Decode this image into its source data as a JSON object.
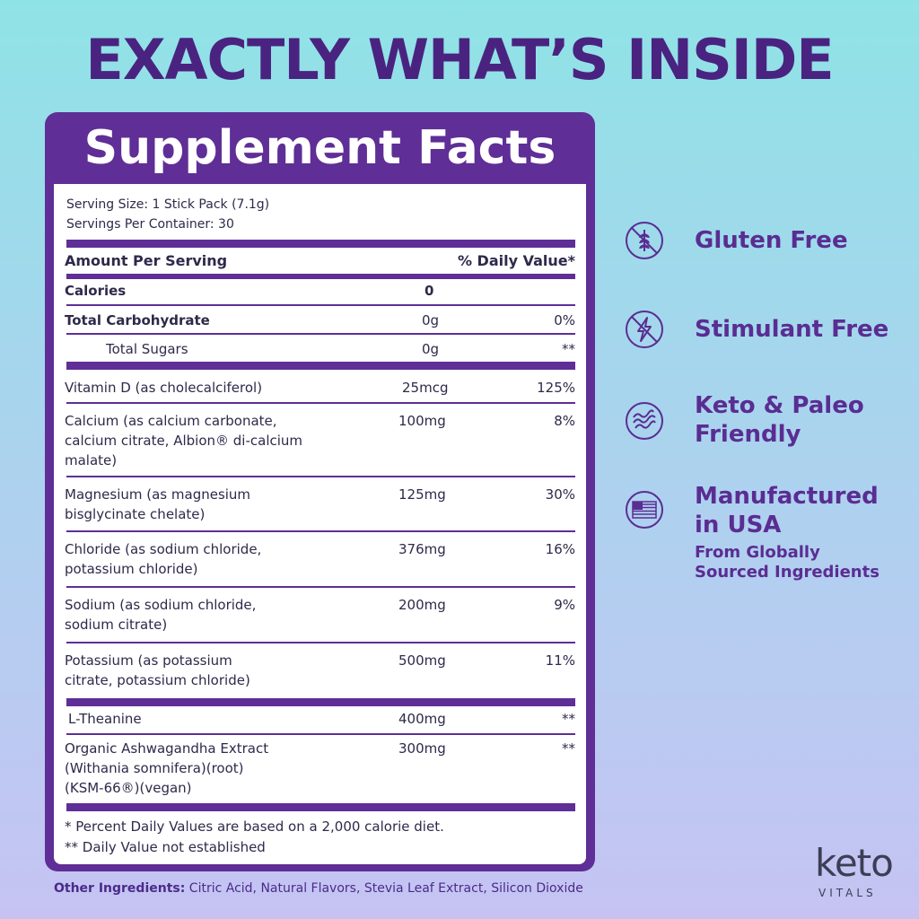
{
  "headline": "EXACTLY WHAT’S INSIDE",
  "panel": {
    "title": "Supplement Facts",
    "serving_size": "Serving Size: 1 Stick Pack (7.1g)",
    "servings_per_container": "Servings Per Container: 30",
    "header_amount": "Amount Per Serving",
    "header_dv": "% Daily Value*",
    "rows": [
      {
        "name": "Calories",
        "amount": "0",
        "dv": ""
      },
      {
        "name": "Total Carbohydrate",
        "amount": "0g",
        "dv": "0%"
      },
      {
        "name": "Total Sugars",
        "amount": "0g",
        "dv": "**"
      },
      {
        "name_lines": [
          "Vitamin D (as cholecalciferol)"
        ],
        "amount": "25mcg",
        "dv": "125%"
      },
      {
        "name_lines": [
          "Calcium (as calcium carbonate,",
          "calcium citrate, Albion® di-calcium",
          "malate)"
        ],
        "amount": "100mg",
        "dv": "8%"
      },
      {
        "name_lines": [
          "Magnesium (as magnesium",
          "bisglycinate chelate)"
        ],
        "amount": "125mg",
        "dv": "30%"
      },
      {
        "name_lines": [
          "Chloride (as sodium chloride,",
          "potassium chloride)"
        ],
        "amount": "376mg",
        "dv": "16%"
      },
      {
        "name_lines": [
          "Sodium (as sodium chloride,",
          "sodium citrate)"
        ],
        "amount": "200mg",
        "dv": "9%"
      },
      {
        "name_lines": [
          "Potassium (as potassium",
          "citrate, potassium chloride)"
        ],
        "amount": "500mg",
        "dv": "11%"
      },
      {
        "name_lines": [
          "L-Theanine"
        ],
        "amount": "400mg",
        "dv": "**"
      },
      {
        "name_lines": [
          "Organic Ashwagandha Extract",
          "(Withania somnifera)(root)",
          "(KSM-66®)(vegan)"
        ],
        "amount": "300mg",
        "dv": "**"
      }
    ],
    "footnote_1": "* Percent Daily Values are based on a 2,000 calorie diet.",
    "footnote_2": "** Daily Value not established"
  },
  "other_ingredients": {
    "label": "Other Ingredients:",
    "text": " Citric Acid, Natural Flavors, Stevia Leaf Extract, Silicon Dioxide"
  },
  "features": [
    {
      "icon": "wheat-crossed-icon",
      "lines": [
        "Gluten Free"
      ]
    },
    {
      "icon": "lightning-crossed-icon",
      "lines": [
        "Stimulant Free"
      ]
    },
    {
      "icon": "bacon-icon",
      "lines": [
        "Keto & Paleo",
        "Friendly"
      ]
    },
    {
      "icon": "usa-flag-icon",
      "lines": [
        "Manufactured",
        "in USA"
      ],
      "sub": [
        "From Globally",
        "Sourced Ingredients"
      ]
    }
  ],
  "logo": {
    "main": "keto",
    "sub": "VITALS"
  },
  "colors": {
    "purple": "#5f2e96",
    "headline": "#4a2380"
  }
}
